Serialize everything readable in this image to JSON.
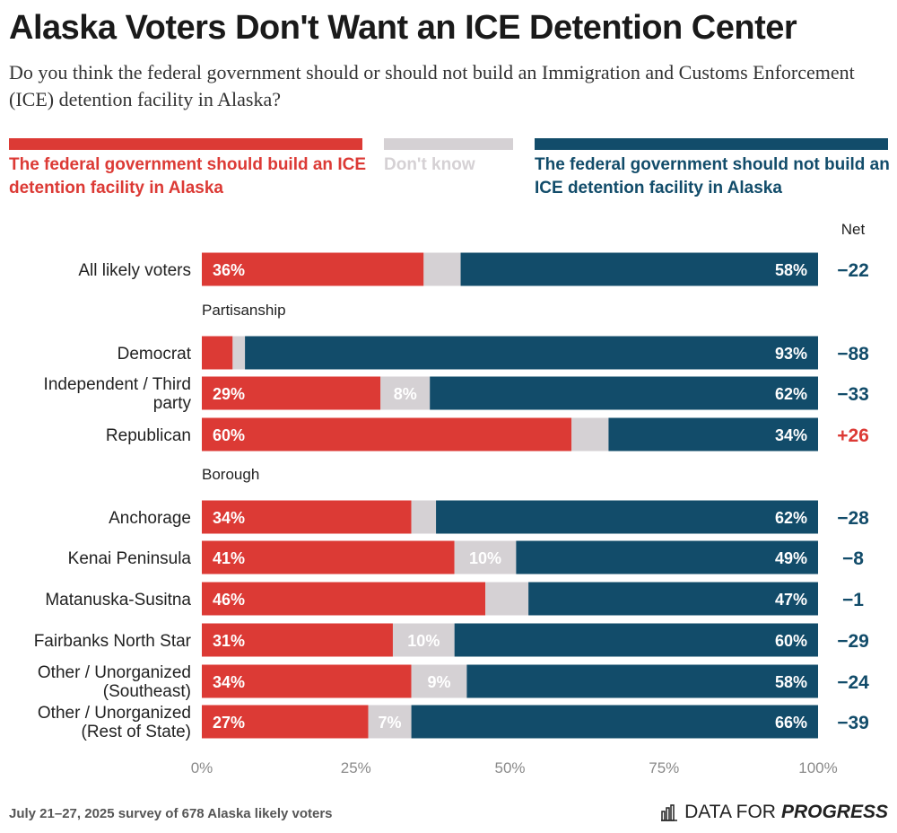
{
  "header": {
    "title": "Alaska Voters Don't Want an ICE Detention Center",
    "subtitle": "Do you think the federal government should or should not build an Immigration and Customs Enforcement (ICE) detention facility in Alaska?"
  },
  "legend": {
    "build": "The federal government should build an ICE detention facility in Alaska",
    "dont_know": "Don't know",
    "not_build": "The federal government should not build an ICE detention facility in Alaska"
  },
  "colors": {
    "build": "#dc3a35",
    "dont_know": "#d5d1d4",
    "not_build": "#124c6a",
    "net_negative": "#124c6a",
    "net_positive": "#dc3a35"
  },
  "footer": {
    "note": "July 21–27, 2025 survey of 678 Alaska likely voters",
    "brand_regular": "DATA FOR",
    "brand_bold": "PROGRESS"
  },
  "chart_data": {
    "type": "bar",
    "orientation": "horizontal-stacked",
    "net_header": "Net",
    "x_ticks": [
      "0%",
      "25%",
      "50%",
      "75%",
      "100%"
    ],
    "xlim": [
      0,
      100
    ],
    "series_names": [
      "The federal government should build an ICE detention facility in Alaska",
      "Don't know",
      "The federal government should not build an ICE detention facility in Alaska"
    ],
    "rows": [
      {
        "label": "All likely voters",
        "group": "",
        "build": 36,
        "dont_know": 6,
        "not_build": 58,
        "build_label": "36%",
        "dk_label": "",
        "not_label": "58%",
        "net": "−22"
      },
      {
        "label": "Democrat",
        "group": "Partisanship",
        "build": 5,
        "dont_know": 2,
        "not_build": 93,
        "build_label": "",
        "dk_label": "",
        "not_label": "93%",
        "net": "−88"
      },
      {
        "label": "Independent / Third party",
        "group": "Partisanship",
        "build": 29,
        "dont_know": 8,
        "not_build": 62,
        "build_label": "29%",
        "dk_label": "8%",
        "not_label": "62%",
        "net": "−33"
      },
      {
        "label": "Republican",
        "group": "Partisanship",
        "build": 60,
        "dont_know": 6,
        "not_build": 34,
        "build_label": "60%",
        "dk_label": "",
        "not_label": "34%",
        "net": "+26"
      },
      {
        "label": "Anchorage",
        "group": "Borough",
        "build": 34,
        "dont_know": 4,
        "not_build": 62,
        "build_label": "34%",
        "dk_label": "",
        "not_label": "62%",
        "net": "−28"
      },
      {
        "label": "Kenai Peninsula",
        "group": "Borough",
        "build": 41,
        "dont_know": 10,
        "not_build": 49,
        "build_label": "41%",
        "dk_label": "10%",
        "not_label": "49%",
        "net": "−8"
      },
      {
        "label": "Matanuska-Susitna",
        "group": "Borough",
        "build": 46,
        "dont_know": 7,
        "not_build": 47,
        "build_label": "46%",
        "dk_label": "",
        "not_label": "47%",
        "net": "−1"
      },
      {
        "label": "Fairbanks North Star",
        "group": "Borough",
        "build": 31,
        "dont_know": 10,
        "not_build": 60,
        "build_label": "31%",
        "dk_label": "10%",
        "not_label": "60%",
        "net": "−29"
      },
      {
        "label": "Other / Unorganized (Southeast)",
        "group": "Borough",
        "build": 34,
        "dont_know": 9,
        "not_build": 58,
        "build_label": "34%",
        "dk_label": "9%",
        "not_label": "58%",
        "net": "−24"
      },
      {
        "label": "Other / Unorganized (Rest of State)",
        "group": "Borough",
        "build": 27,
        "dont_know": 7,
        "not_build": 66,
        "build_label": "27%",
        "dk_label": "7%",
        "not_label": "66%",
        "net": "−39"
      }
    ],
    "group_headers": [
      "Partisanship",
      "Borough"
    ]
  }
}
